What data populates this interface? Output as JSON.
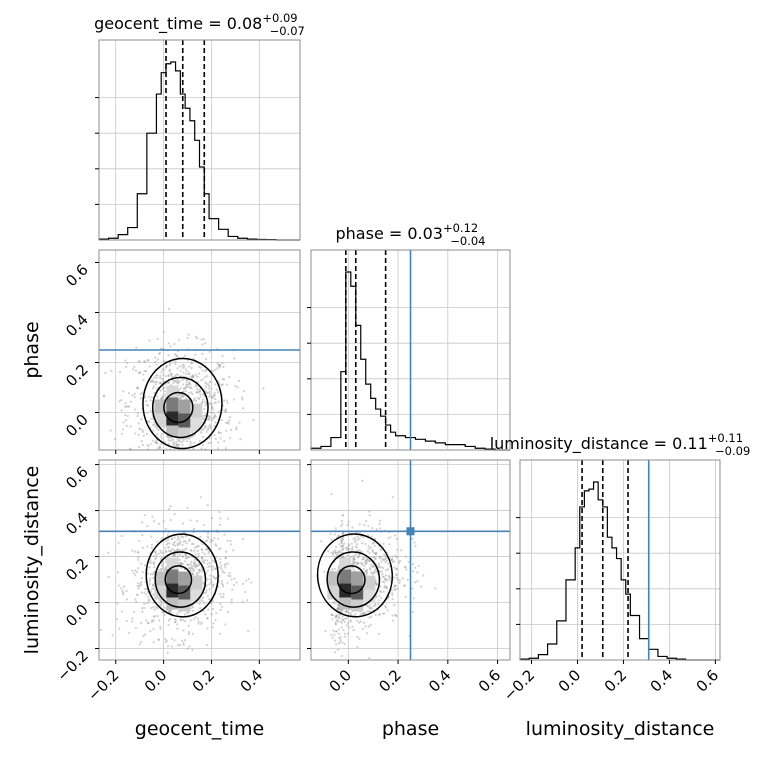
{
  "chart_data": {
    "type": "corner",
    "parameters": [
      {
        "name": "geocent_time",
        "label": "geocent_time",
        "title": "geocent_time = 0.08",
        "sup": "+0.09",
        "sub": "−0.07",
        "range": [
          -0.27,
          0.57
        ],
        "median": 0.08,
        "quantiles": [
          0.01,
          0.17
        ],
        "ticks": [
          -0.2,
          0.0,
          0.2,
          0.4
        ],
        "tick_labels": [
          "−0.2",
          "0.0",
          "0.2",
          "0.4"
        ],
        "hist": {
          "edges": [
            -0.27,
            -0.23,
            -0.19,
            -0.15,
            -0.11,
            -0.07,
            -0.03,
            -0.01,
            0.01,
            0.03,
            0.05,
            0.07,
            0.09,
            0.11,
            0.13,
            0.15,
            0.17,
            0.19,
            0.23,
            0.27,
            0.31,
            0.35,
            0.39,
            0.43,
            0.47,
            0.57
          ],
          "counts": [
            0.5,
            1,
            3,
            7,
            26,
            60,
            82,
            94,
            99,
            100,
            95,
            82,
            74,
            67,
            56,
            41,
            26,
            12,
            6,
            2,
            1,
            0.5,
            0.3,
            0.2,
            0
          ]
        }
      },
      {
        "name": "phase",
        "label": "phase",
        "title": "phase = 0.03",
        "sup": "+0.12",
        "sub": "−0.04",
        "range": [
          -0.15,
          0.65
        ],
        "median": 0.03,
        "quantiles": [
          -0.01,
          0.15
        ],
        "truth": 0.25,
        "ticks": [
          0.0,
          0.2,
          0.4,
          0.6
        ],
        "tick_labels": [
          "0.0",
          "0.2",
          "0.4",
          "0.6"
        ],
        "y_ticks": [
          0.0,
          0.2,
          0.4,
          0.6
        ],
        "y_tick_labels": [
          "0.0",
          "0.2",
          "0.4",
          "0.6"
        ],
        "hist": {
          "edges": [
            -0.15,
            -0.11,
            -0.07,
            -0.03,
            -0.01,
            0.01,
            0.03,
            0.05,
            0.07,
            0.09,
            0.11,
            0.13,
            0.15,
            0.17,
            0.19,
            0.23,
            0.27,
            0.31,
            0.35,
            0.39,
            0.43,
            0.47,
            0.51,
            0.55,
            0.59,
            0.65
          ],
          "counts": [
            1,
            2,
            7,
            44,
            100,
            92,
            70,
            51,
            37,
            29,
            23,
            19,
            14,
            10,
            8,
            7,
            6,
            5,
            4,
            3,
            3,
            2,
            1,
            0.5,
            0
          ]
        }
      },
      {
        "name": "luminosity_distance",
        "label": "luminosity_distance",
        "title": "luminosity_distance = 0.11",
        "sup": "+0.11",
        "sub": "−0.09",
        "range": [
          -0.25,
          0.62
        ],
        "median": 0.11,
        "quantiles": [
          0.02,
          0.22
        ],
        "truth": 0.31,
        "ticks": [
          -0.2,
          0.0,
          0.2,
          0.4,
          0.6
        ],
        "tick_labels": [
          "−0.2",
          "0.0",
          "0.2",
          "0.4",
          "0.6"
        ],
        "y_ticks": [
          -0.2,
          0.0,
          0.2,
          0.4,
          0.6
        ],
        "y_tick_labels": [
          "−0.2",
          "0.0",
          "0.2",
          "0.4",
          "0.6"
        ],
        "hist": {
          "edges": [
            -0.25,
            -0.21,
            -0.17,
            -0.13,
            -0.09,
            -0.05,
            -0.01,
            0.01,
            0.03,
            0.05,
            0.07,
            0.09,
            0.11,
            0.13,
            0.15,
            0.17,
            0.19,
            0.21,
            0.23,
            0.27,
            0.31,
            0.35,
            0.39,
            0.43,
            0.47,
            0.62
          ],
          "counts": [
            0.5,
            1,
            3,
            9,
            22,
            45,
            63,
            86,
            95,
            96,
            100,
            90,
            86,
            69,
            63,
            57,
            45,
            37,
            25,
            12,
            6,
            2,
            1,
            0.5,
            0
          ]
        }
      }
    ],
    "pairs": [
      {
        "x": "geocent_time",
        "y": "phase",
        "truth_y": 0.25,
        "center": [
          0.07,
          0.02
        ],
        "spread": [
          0.11,
          0.12
        ],
        "rho": -0.05
      },
      {
        "x": "geocent_time",
        "y": "luminosity_distance",
        "truth_y": 0.31,
        "center": [
          0.07,
          0.1
        ],
        "spread": [
          0.1,
          0.12
        ],
        "rho": 0.1
      },
      {
        "x": "phase",
        "y": "luminosity_distance",
        "truth_x": 0.25,
        "truth_y": 0.31,
        "center": [
          0.02,
          0.1
        ],
        "spread": [
          0.1,
          0.12
        ],
        "rho": 0.2
      }
    ],
    "colors": {
      "truth": "#4682b4",
      "hist": "#000000",
      "points": "#9a9a9a",
      "grid": "#c8c8c8"
    },
    "grid": true
  }
}
